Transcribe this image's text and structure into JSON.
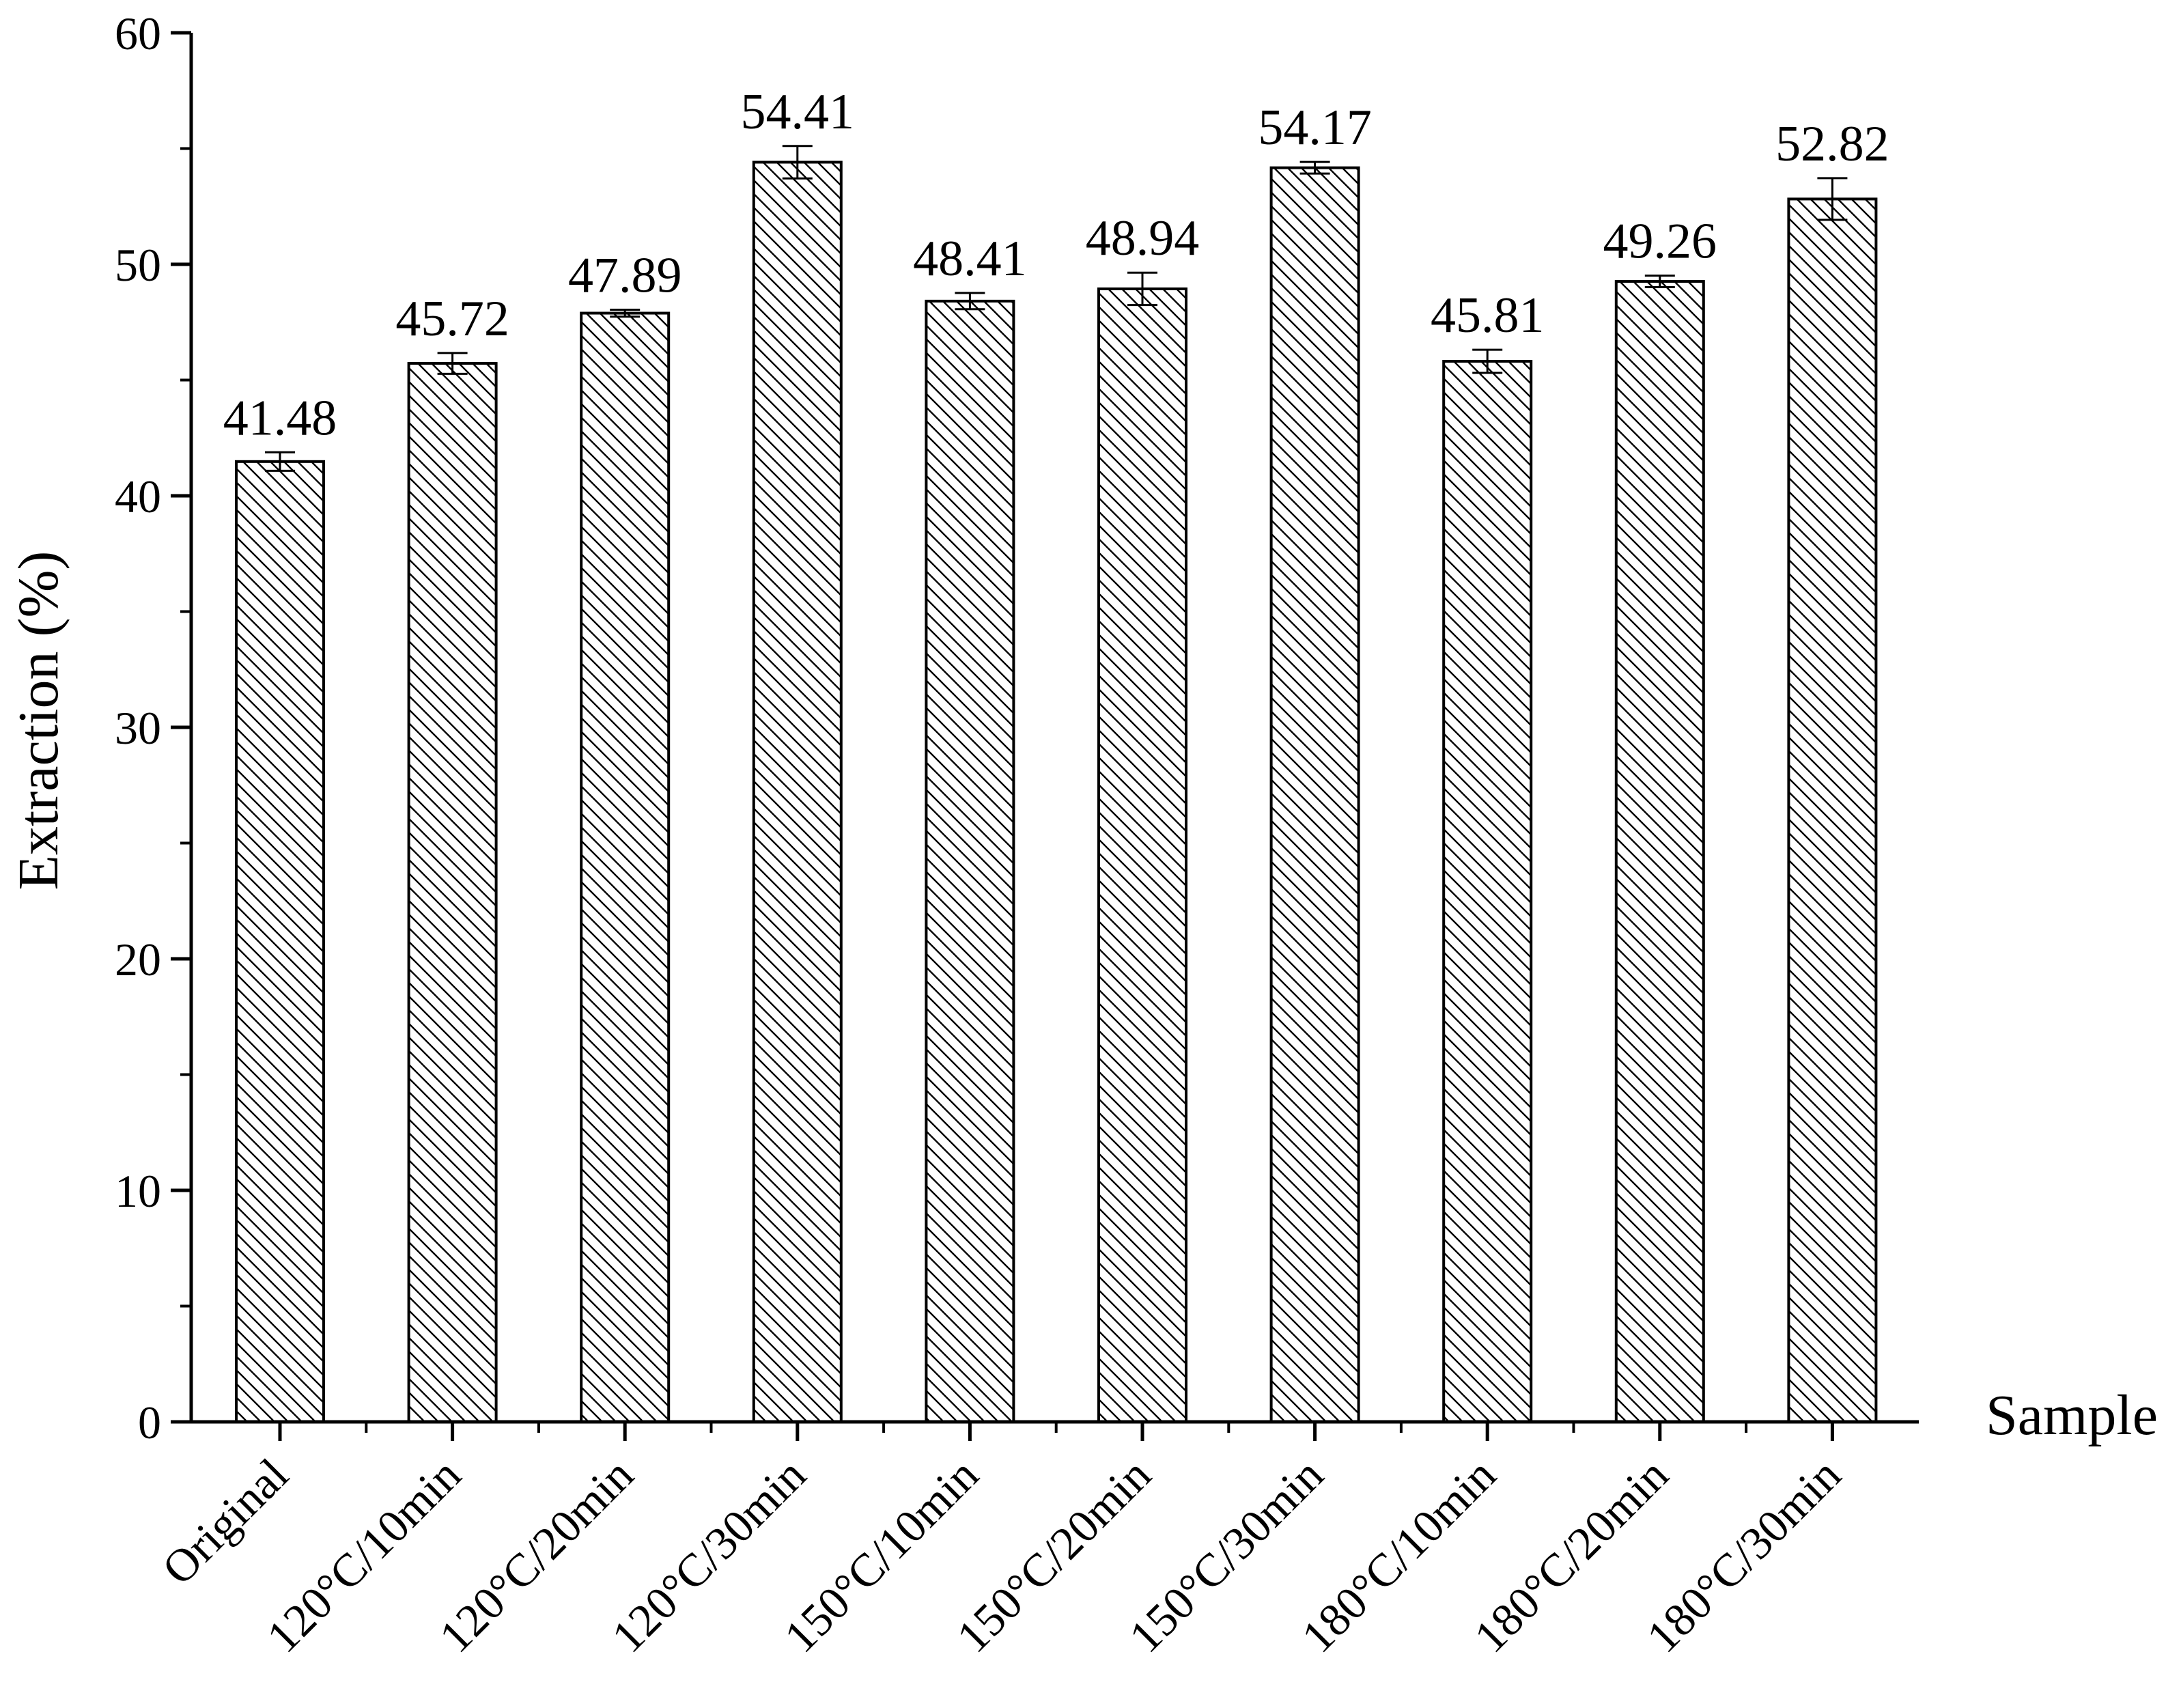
{
  "chart_data": {
    "type": "bar",
    "title": "",
    "xlabel": "Sample",
    "ylabel": "Extraction (%)",
    "ylim": [
      0,
      60
    ],
    "yticks": [
      0,
      10,
      20,
      30,
      40,
      50,
      60
    ],
    "grid": false,
    "legend": "none",
    "bar_fill": "hatched diagonal lines",
    "colors": {
      "bar_edge": "#000000",
      "hatch": "#000000",
      "background": "#ffffff"
    },
    "categories": [
      "Original",
      "120°C/10min",
      "120°C/20min",
      "120°C/30min",
      "150°C/10min",
      "150°C/20min",
      "150°C/30min",
      "180°C/10min",
      "180°C/20min",
      "180°C/30min"
    ],
    "values": [
      41.48,
      45.72,
      47.89,
      54.41,
      48.41,
      48.94,
      54.17,
      45.81,
      49.26,
      52.82
    ],
    "value_labels": [
      "41.48",
      "45.72",
      "47.89",
      "54.41",
      "48.41",
      "48.94",
      "54.17",
      "45.81",
      "49.26",
      "52.82"
    ],
    "error": [
      0.4,
      0.45,
      0.15,
      0.7,
      0.35,
      0.7,
      0.25,
      0.5,
      0.25,
      0.9
    ]
  }
}
